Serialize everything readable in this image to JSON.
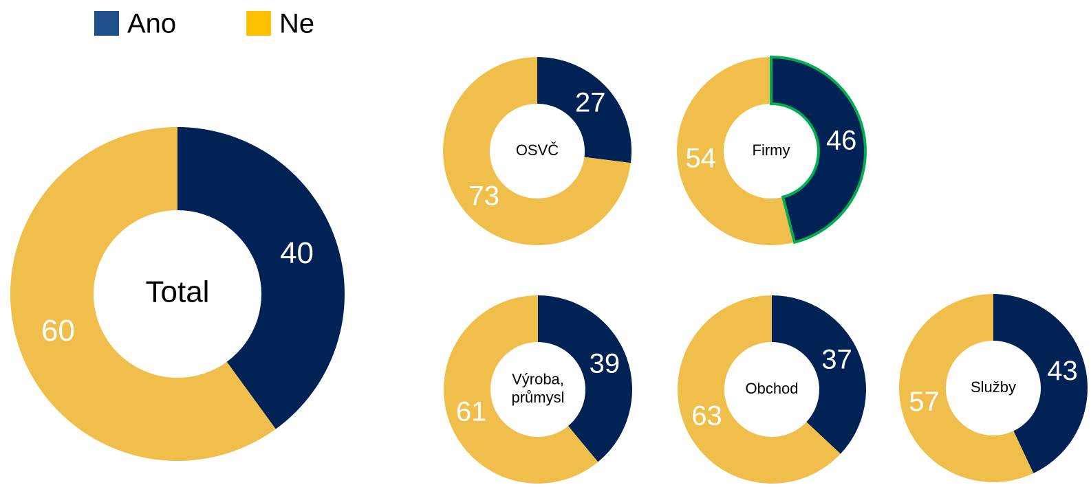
{
  "legend": [
    {
      "name": "Ano",
      "color": "#1f4e8c"
    },
    {
      "name": "Ne",
      "color": "#ffc000"
    }
  ],
  "chart_data": [
    {
      "type": "donut",
      "label": [
        "Total"
      ],
      "values": [
        40,
        60
      ],
      "colors": [
        "#002255",
        "#f0be4a"
      ]
    },
    {
      "type": "donut",
      "label": [
        "OSVČ"
      ],
      "values": [
        27,
        73
      ],
      "colors": [
        "#002255",
        "#f0be4a"
      ]
    },
    {
      "type": "donut",
      "label": [
        "Firmy"
      ],
      "values": [
        46,
        54
      ],
      "colors": [
        "#002255",
        "#f0be4a"
      ],
      "highlight": 0,
      "highlight_color": "#00b050"
    },
    {
      "type": "donut",
      "label": [
        "Výroba,",
        "průmysl"
      ],
      "values": [
        39,
        61
      ],
      "colors": [
        "#002255",
        "#f0be4a"
      ]
    },
    {
      "type": "donut",
      "label": [
        "Obchod"
      ],
      "values": [
        37,
        63
      ],
      "colors": [
        "#002255",
        "#f0be4a"
      ]
    },
    {
      "type": "donut",
      "label": [
        "Služby"
      ],
      "values": [
        43,
        57
      ],
      "colors": [
        "#002255",
        "#f0be4a"
      ]
    }
  ]
}
